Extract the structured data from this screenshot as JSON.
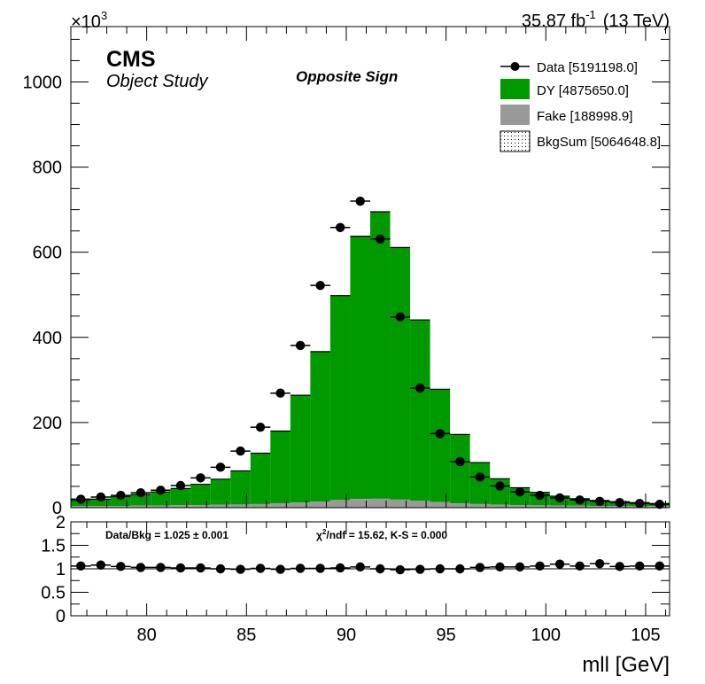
{
  "header": {
    "lumi": "35.87 fb",
    "lumi_exp": "-1",
    "energy": "(13 TeV)",
    "y_multiplier_base": "×10",
    "y_multiplier_exp": "3",
    "experiment": "CMS",
    "study": "Object Study",
    "region": "Opposite Sign"
  },
  "legend": [
    {
      "label": "Data [5191198.0]",
      "kind": "marker",
      "color": "#000000"
    },
    {
      "label": "DY [4875650.0]",
      "kind": "fill",
      "color": "#009900"
    },
    {
      "label": "Fake [188998.9]",
      "kind": "fill",
      "color": "#999999"
    },
    {
      "label": "BkgSum [5064648.8]",
      "kind": "hatch",
      "color": "#000000"
    }
  ],
  "ratio_stats": {
    "data_bkg": "Data/Bkg = 1.025 ± 0.001",
    "chi2_symbol": "χ",
    "chi2_exp": "2",
    "chi2_text": "/ndf = 15.62,   K-S = 0.000"
  },
  "axes": {
    "xlabel": "mll [GeV]",
    "x_ticks": [
      "80",
      "85",
      "90",
      "95",
      "100",
      "105"
    ],
    "y_ticks": [
      "0",
      "200",
      "400",
      "600",
      "800",
      "1000"
    ],
    "ratio_ticks": [
      "0",
      "0.5",
      "1",
      "1.5",
      "2"
    ]
  },
  "chart_data": [
    {
      "type": "bar",
      "title": "Opposite Sign",
      "xlabel": "mll [GeV]",
      "ylabel": "",
      "xlim": [
        76.2,
        106.2
      ],
      "ylim": [
        0,
        1130
      ],
      "y_unit_multiplier": 1000,
      "bin_edges": [
        76.2,
        77.2,
        78.2,
        79.2,
        80.2,
        81.2,
        82.2,
        83.2,
        84.2,
        85.2,
        86.2,
        87.2,
        88.2,
        89.2,
        90.2,
        91.2,
        92.2,
        93.2,
        94.2,
        95.2,
        96.2,
        97.2,
        98.2,
        99.2,
        100.2,
        101.2,
        102.2,
        103.2,
        104.2,
        105.2,
        106.2
      ],
      "series": [
        {
          "name": "Fake [188998.9]",
          "stack": true,
          "values": [
            3.5,
            4,
            4,
            5,
            5,
            6,
            6,
            7,
            7.5,
            8.5,
            10,
            12,
            14.5,
            18,
            20.5,
            21,
            19,
            16,
            13,
            10,
            8.5,
            7,
            6,
            5.5,
            5,
            4.5,
            4,
            4,
            3.5,
            3.5
          ]
        },
        {
          "name": "DY [4875650.0]",
          "stack": true,
          "values": [
            13.5,
            16,
            22,
            26,
            32,
            39,
            49,
            60,
            79,
            119.5,
            170,
            252,
            352,
            480,
            617,
            674,
            592,
            425,
            265,
            162,
            97.5,
            61,
            41,
            30.5,
            22,
            16.5,
            13,
            10,
            8.5,
            6.5
          ]
        },
        {
          "name": "Data [5191198.0]",
          "values": [
            20,
            25,
            29,
            35,
            41,
            52,
            70,
            95,
            133,
            189,
            269,
            381,
            522,
            658,
            720,
            631,
            448,
            281,
            174,
            108,
            72,
            51,
            37,
            29,
            23,
            18,
            15,
            12,
            10,
            8
          ]
        }
      ]
    },
    {
      "type": "scatter",
      "title": "",
      "xlabel": "mll [GeV]",
      "ylabel": "",
      "xlim": [
        76.2,
        106.2
      ],
      "ylim": [
        0,
        2
      ],
      "series": [
        {
          "name": "",
          "x": [
            76.7,
            77.7,
            78.7,
            79.7,
            80.7,
            81.7,
            82.7,
            83.7,
            84.7,
            85.7,
            86.7,
            87.7,
            88.7,
            89.7,
            90.7,
            91.7,
            92.7,
            93.7,
            94.7,
            95.7,
            96.7,
            97.7,
            98.7,
            99.7,
            100.7,
            101.7,
            102.7,
            103.7,
            104.7,
            105.7
          ],
          "values": [
            1.06,
            1.08,
            1.05,
            1.03,
            1.03,
            1.02,
            1.02,
            1.0,
            0.99,
            1.01,
            0.99,
            1.01,
            1.01,
            1.02,
            1.04,
            1.0,
            0.98,
            0.99,
            1.0,
            1.0,
            1.03,
            1.04,
            1.04,
            1.06,
            1.1,
            1.06,
            1.11,
            1.05,
            1.06,
            1.06
          ]
        }
      ]
    }
  ]
}
